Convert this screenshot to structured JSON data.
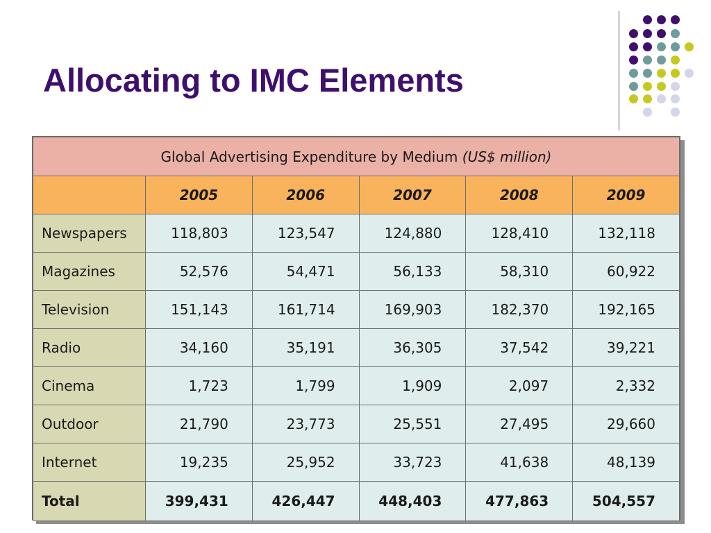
{
  "slide": {
    "title": "Allocating to IMC Elements"
  },
  "decoration": {
    "colors": {
      "purple": "#3f0f6e",
      "teal": "#6f9b9b",
      "lime": "#c7c920",
      "lavender": "#d4d4ea"
    }
  },
  "table": {
    "caption_main": "Global Advertising Expenditure by Medium ",
    "caption_units": "(US$ million)",
    "colors": {
      "caption_bg": "#ebb0a6",
      "header_bg": "#f9b35c",
      "label_bg": "#d8d8b3",
      "cell_bg": "#dfeeec"
    }
  },
  "chart_data": {
    "type": "table",
    "title": "Global Advertising Expenditure by Medium (US$ million)",
    "columns": [
      "2005",
      "2006",
      "2007",
      "2008",
      "2009"
    ],
    "rows": [
      {
        "label": "Newspapers",
        "values": [
          "118,803",
          "123,547",
          "124,880",
          "128,410",
          "132,118"
        ]
      },
      {
        "label": "Magazines",
        "values": [
          "52,576",
          "54,471",
          "56,133",
          "58,310",
          "60,922"
        ]
      },
      {
        "label": "Television",
        "values": [
          "151,143",
          "161,714",
          "169,903",
          "182,370",
          "192,165"
        ]
      },
      {
        "label": "Radio",
        "values": [
          "34,160",
          "35,191",
          "36,305",
          "37,542",
          "39,221"
        ]
      },
      {
        "label": "Cinema",
        "values": [
          "1,723",
          "1,799",
          "1,909",
          "2,097",
          "2,332"
        ]
      },
      {
        "label": "Outdoor",
        "values": [
          "21,790",
          "23,773",
          "25,551",
          "27,495",
          "29,660"
        ]
      },
      {
        "label": "Internet",
        "values": [
          "19,235",
          "25,952",
          "33,723",
          "41,638",
          "48,139"
        ]
      },
      {
        "label": "Total",
        "values": [
          "399,431",
          "426,447",
          "448,403",
          "477,863",
          "504,557"
        ]
      }
    ]
  }
}
